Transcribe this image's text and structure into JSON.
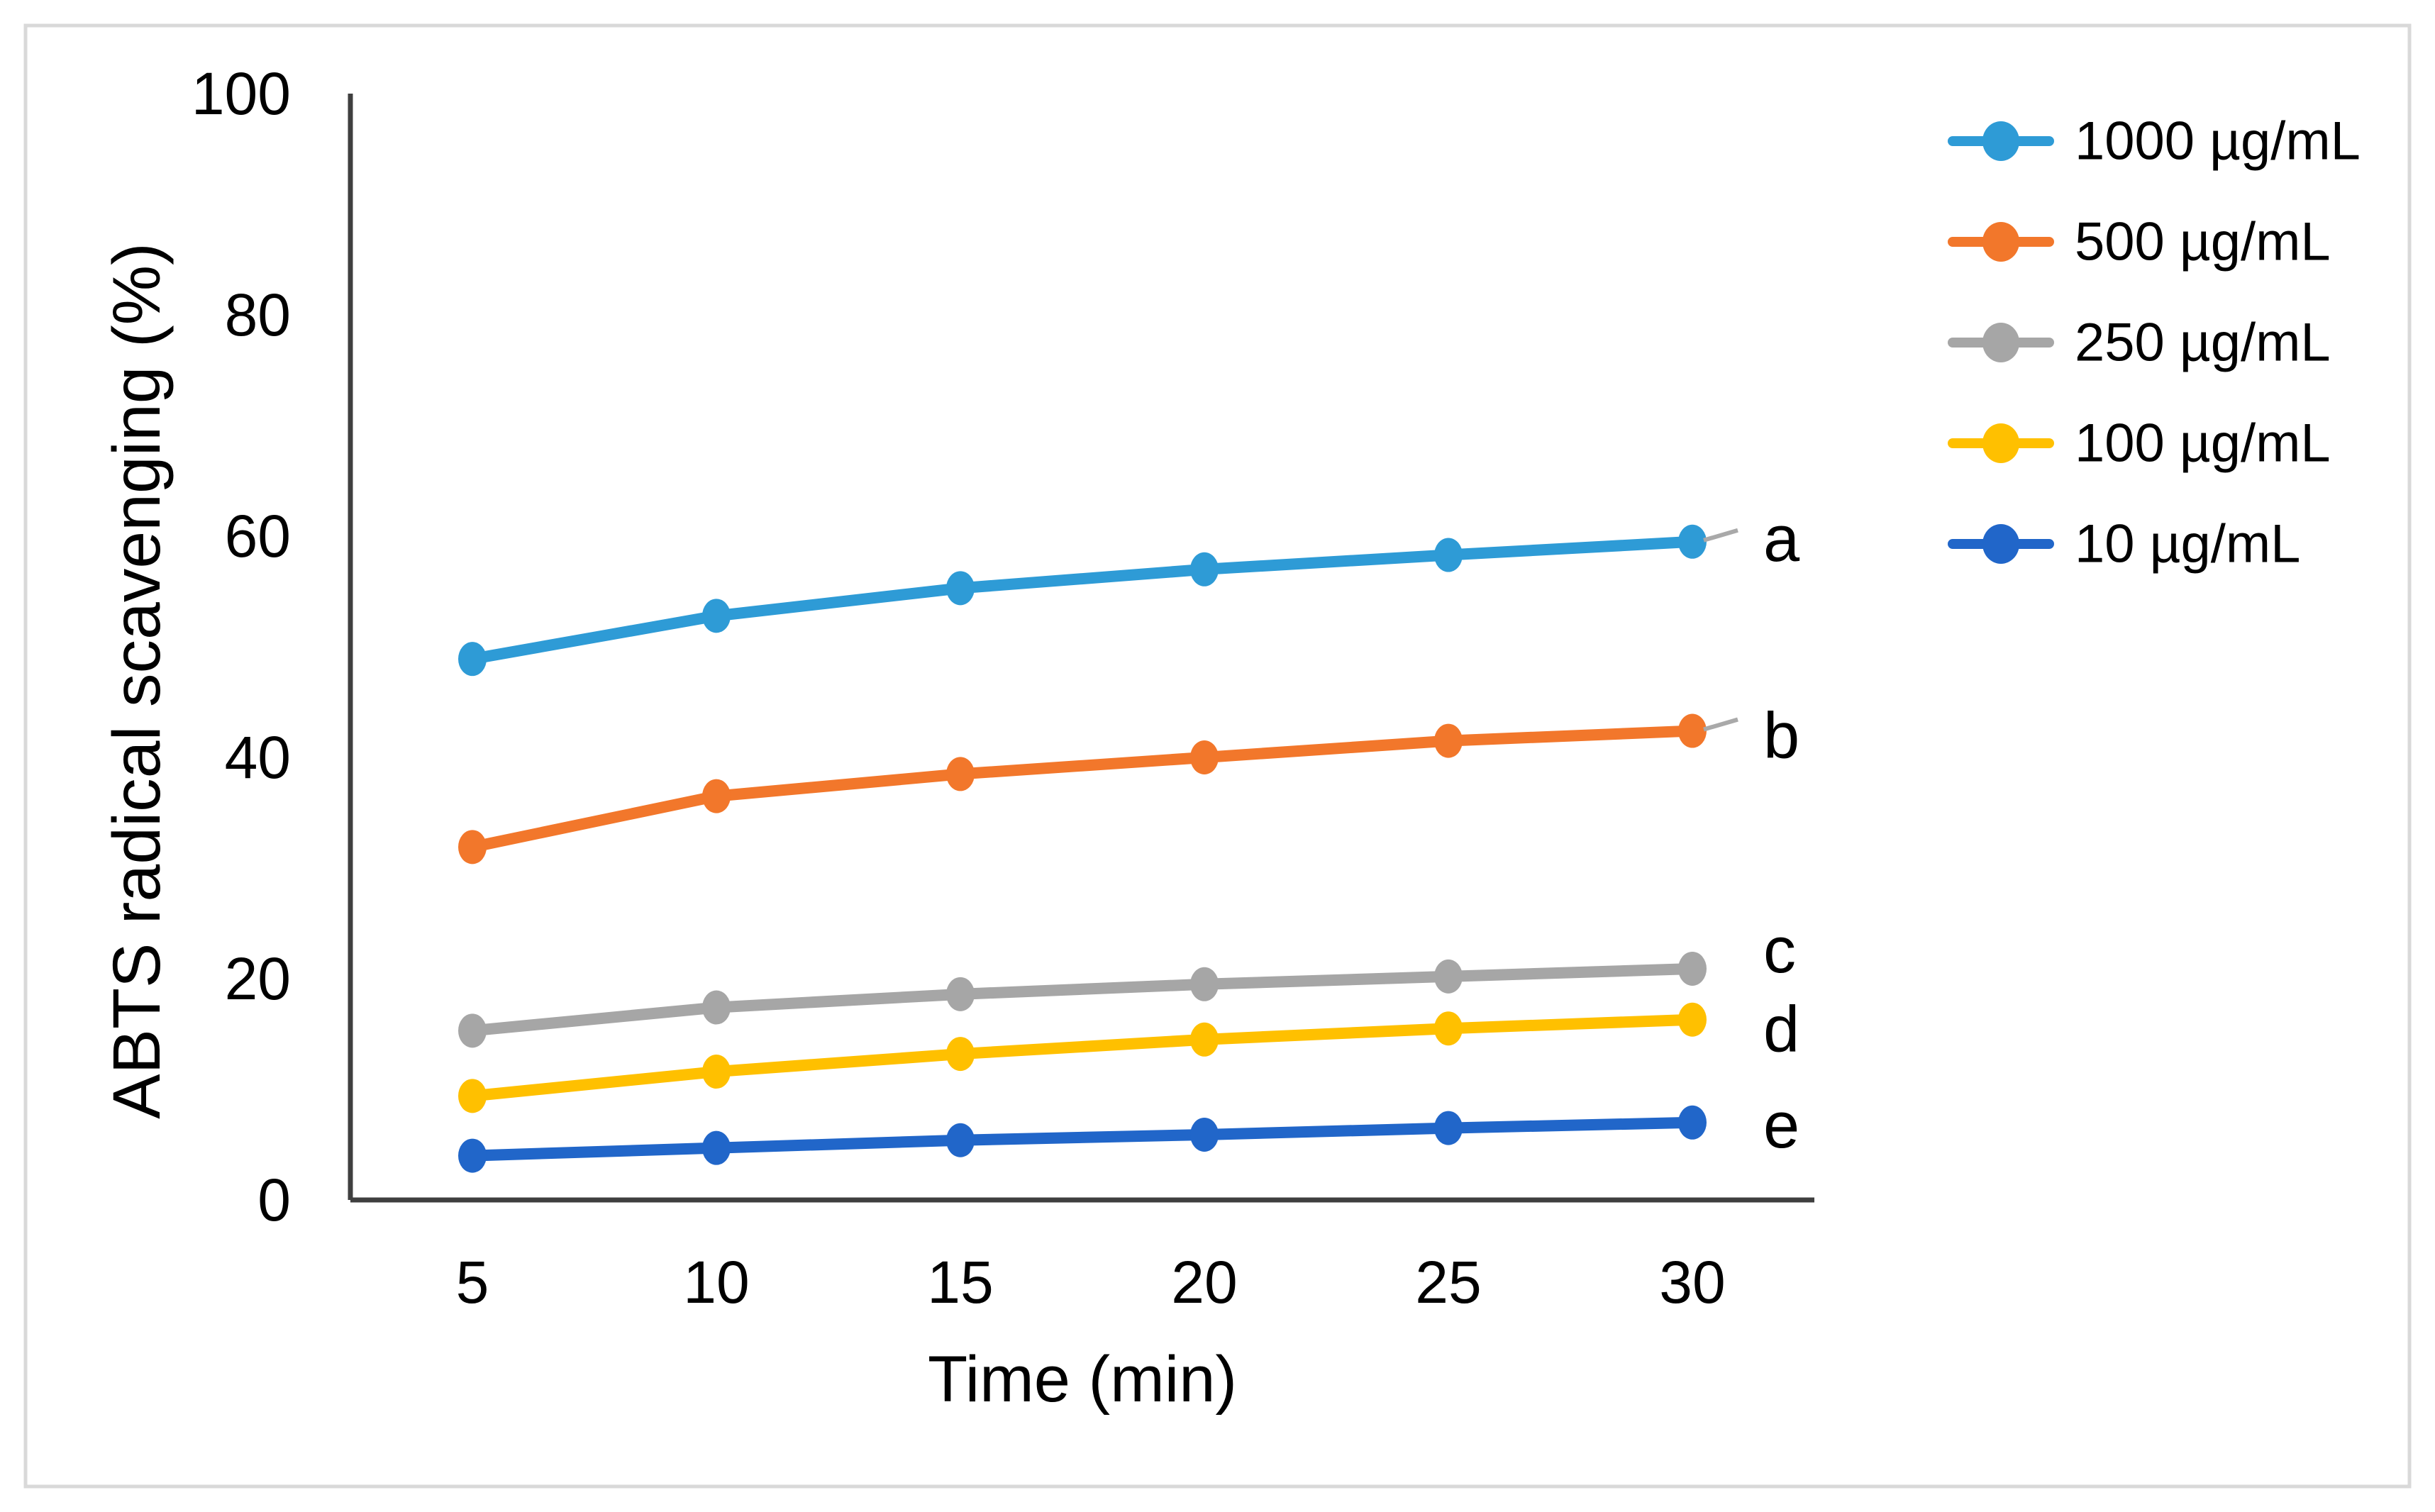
{
  "figure": {
    "background": "#FFFFFF",
    "border_color": "#D9D9D9"
  },
  "chart_data": {
    "type": "line",
    "title": "",
    "xlabel": "Time (min)",
    "ylabel": "ABTS radical scavenging (%)",
    "x_categories": [
      "5",
      "10",
      "15",
      "20",
      "25",
      "30"
    ],
    "y_ticks": [
      "0",
      "20",
      "40",
      "60",
      "80",
      "100"
    ],
    "ylim": [
      0,
      100
    ],
    "xlim_minutes": [
      5,
      30
    ],
    "grid": false,
    "legend_position": "right",
    "axis_color": "#3F3F3F",
    "leader_color": "#A9A9A9",
    "series": [
      {
        "name": "1000 µg/mL",
        "color": "#2E9BD6",
        "x": [
          5,
          10,
          15,
          20,
          25,
          30
        ],
        "values": [
          48.9,
          52.8,
          55.3,
          57.0,
          58.3,
          59.5
        ],
        "end_label": "a",
        "leader": true
      },
      {
        "name": "500  µg/mL",
        "color": "#F2772B",
        "x": [
          5,
          10,
          15,
          20,
          25,
          30
        ],
        "values": [
          31.9,
          36.5,
          38.5,
          40.0,
          41.5,
          42.4
        ],
        "end_label": "b",
        "leader": true
      },
      {
        "name": "250 µg/mL",
        "color": "#A6A6A6",
        "x": [
          5,
          10,
          15,
          20,
          25,
          30
        ],
        "values": [
          15.3,
          17.4,
          18.6,
          19.5,
          20.2,
          20.9
        ],
        "end_label": "c",
        "leader": false
      },
      {
        "name": "100 µg/mL",
        "color": "#FFC000",
        "x": [
          5,
          10,
          15,
          20,
          25,
          30
        ],
        "values": [
          9.4,
          11.6,
          13.2,
          14.5,
          15.5,
          16.3
        ],
        "end_label": "d",
        "leader": false
      },
      {
        "name": "10 µg/mL",
        "color": "#2166C9",
        "x": [
          5,
          10,
          15,
          20,
          25,
          30
        ],
        "values": [
          4.0,
          4.7,
          5.4,
          5.9,
          6.5,
          7.0
        ],
        "end_label": "e",
        "leader": false
      }
    ]
  }
}
